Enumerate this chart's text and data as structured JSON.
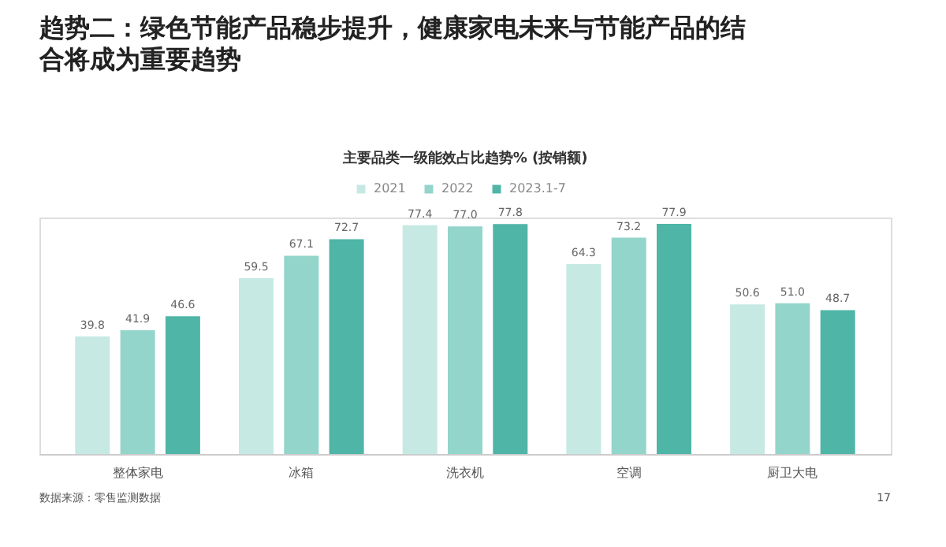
{
  "chart_data": {
    "type": "bar",
    "title": "趋势二：绿色节能产品稳步提升，健康家电未来与节能产品的结合将成为重要趋势",
    "subtitle": "主要品类一级能效占比趋势% (按销额)",
    "categories": [
      "整体家电",
      "冰箱",
      "洗衣机",
      "空调",
      "厨卫大电"
    ],
    "series": [
      {
        "name": "2021",
        "color": "#c6e9e3",
        "values": [
          39.8,
          59.5,
          77.4,
          64.3,
          50.6
        ],
        "value_labels": [
          "39.8",
          "59.5",
          "77.4",
          "64.3",
          "50.6"
        ]
      },
      {
        "name": "2022",
        "color": "#93d5ca",
        "values": [
          41.9,
          67.1,
          77.0,
          73.2,
          51.0
        ],
        "value_labels": [
          "41.9",
          "67.1",
          "77.0",
          "73.2",
          "51.0"
        ]
      },
      {
        "name": "2023.1-7",
        "color": "#4fb5a7",
        "values": [
          46.6,
          72.7,
          77.8,
          77.9,
          48.7
        ],
        "value_labels": [
          "46.6",
          "72.7",
          "77.8",
          "77.9",
          "48.7"
        ]
      }
    ],
    "legend": "top",
    "grid": false,
    "tick_labels": "x",
    "annotations": [
      "数据来源：零售监测数据",
      "17"
    ]
  }
}
